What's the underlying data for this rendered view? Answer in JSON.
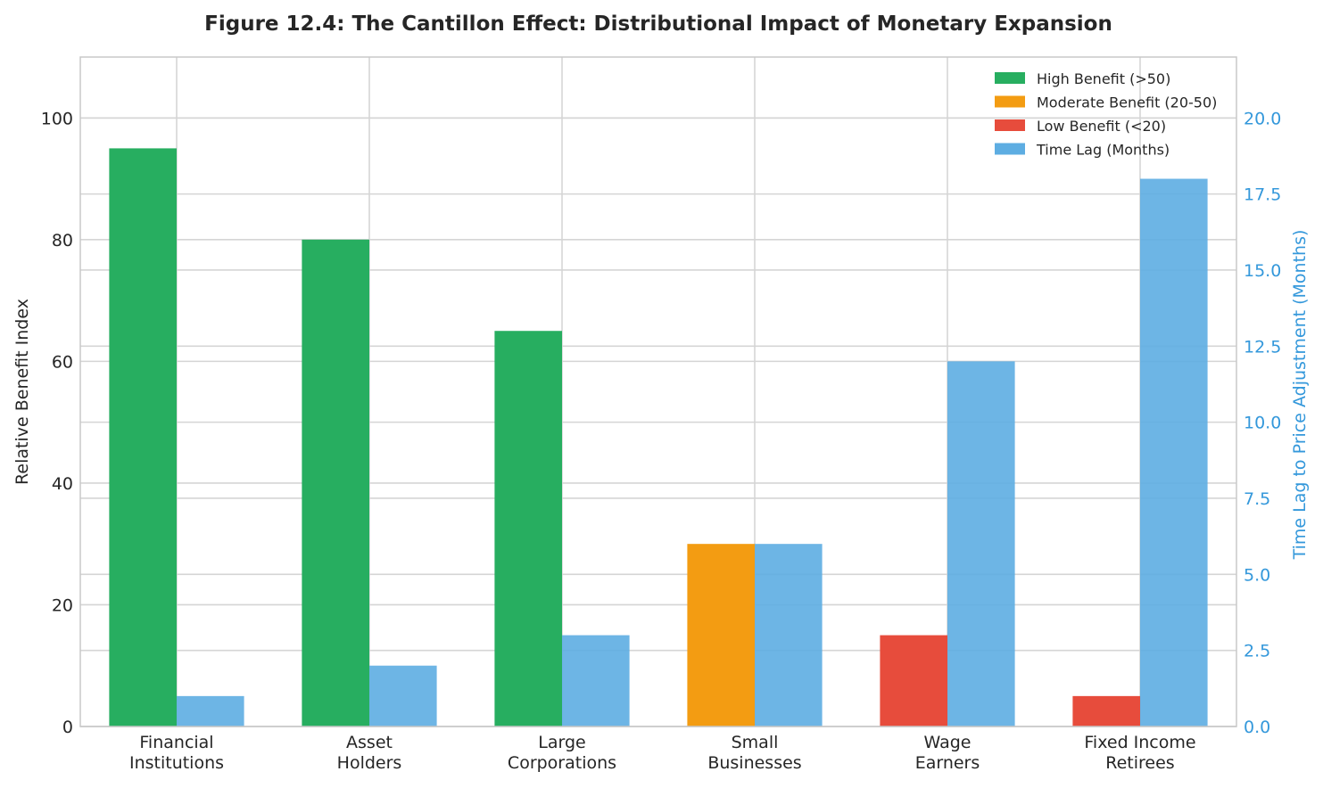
{
  "chart_data": {
    "type": "bar",
    "title": "Figure 12.4: The Cantillon Effect: Distributional Impact of Monetary Expansion",
    "categories": [
      [
        "Financial",
        "Institutions"
      ],
      [
        "Asset",
        "Holders"
      ],
      [
        "Large",
        "Corporations"
      ],
      [
        "Small",
        "Businesses"
      ],
      [
        "Wage",
        "Earners"
      ],
      [
        "Fixed Income",
        "Retirees"
      ]
    ],
    "series": [
      {
        "name": "Relative Benefit Index",
        "axis": "left",
        "values": [
          95,
          80,
          65,
          30,
          15,
          5
        ],
        "colors": [
          "#27ae60",
          "#27ae60",
          "#27ae60",
          "#f39c12",
          "#e74c3c",
          "#e74c3c"
        ]
      },
      {
        "name": "Time Lag (Months)",
        "axis": "right",
        "values": [
          1,
          2,
          3,
          6,
          12,
          18
        ],
        "color": "#5dade2"
      }
    ],
    "ylabel": "Relative Benefit Index",
    "ylabel_right": "Time Lag to Price Adjustment (Months)",
    "ylim": [
      0,
      110
    ],
    "ylim_right": [
      0,
      22
    ],
    "yticks": [
      "0",
      "20",
      "40",
      "60",
      "80",
      "100"
    ],
    "yticks_right": [
      "0.0",
      "2.5",
      "5.0",
      "7.5",
      "10.0",
      "12.5",
      "15.0",
      "17.5",
      "20.0"
    ],
    "right_axis_color": "#3498db",
    "grid": true,
    "legend_position": "top-right",
    "legend": [
      {
        "label": "High Benefit (>50)",
        "color": "#27ae60"
      },
      {
        "label": "Moderate Benefit (20-50)",
        "color": "#f39c12"
      },
      {
        "label": "Low Benefit (<20)",
        "color": "#e74c3c"
      },
      {
        "label": "Time Lag (Months)",
        "color": "#5dade2"
      }
    ]
  }
}
